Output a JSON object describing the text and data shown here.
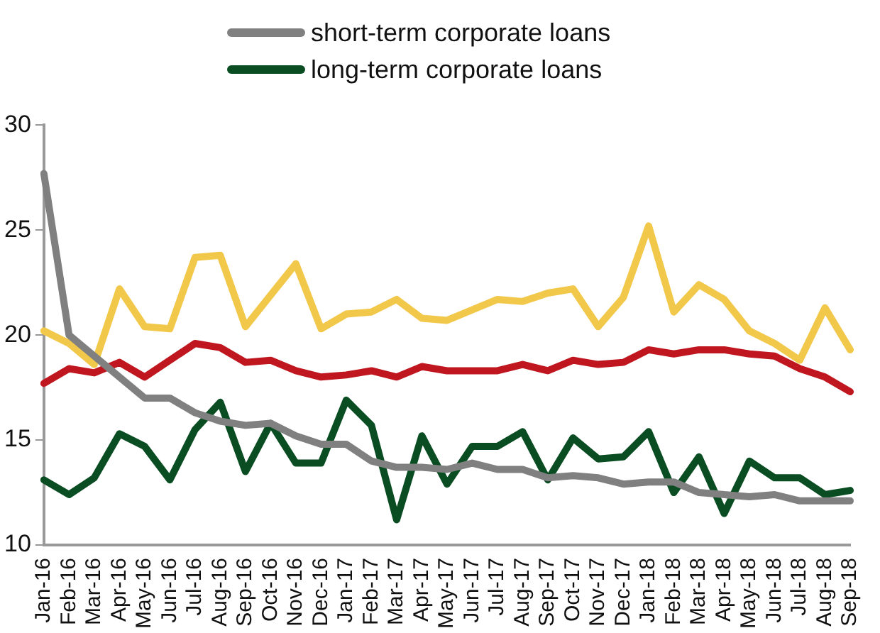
{
  "chart_data": {
    "type": "line",
    "categories": [
      "Jan-16",
      "Feb-16",
      "Mar-16",
      "Apr-16",
      "May-16",
      "Jun-16",
      "Jul-16",
      "Aug-16",
      "Sep-16",
      "Oct-16",
      "Nov-16",
      "Dec-16",
      "Jan-17",
      "Feb-17",
      "Mar-17",
      "Apr-17",
      "May-17",
      "Jun-17",
      "Jul-17",
      "Aug-17",
      "Sep-17",
      "Oct-17",
      "Nov-17",
      "Dec-17",
      "Jan-18",
      "Feb-18",
      "Mar-18",
      "Apr-18",
      "May-18",
      "Jun-18",
      "Jul-18",
      "Aug-18",
      "Sep-18"
    ],
    "series": [
      {
        "name": "short-term corporate loans",
        "color": "#808080",
        "values": [
          27.7,
          20.0,
          19.0,
          18.0,
          17.0,
          17.0,
          16.3,
          15.9,
          15.7,
          15.8,
          15.2,
          14.8,
          14.8,
          14.0,
          13.7,
          13.7,
          13.6,
          13.9,
          13.6,
          13.6,
          13.2,
          13.3,
          13.2,
          12.9,
          13.0,
          13.0,
          12.5,
          12.4,
          12.3,
          12.4,
          12.1,
          12.1,
          12.1
        ]
      },
      {
        "name": "long-term corporate loans",
        "color": "#0b4d22",
        "values": [
          13.1,
          12.4,
          13.2,
          15.3,
          14.7,
          13.1,
          15.5,
          16.8,
          13.5,
          15.8,
          13.9,
          13.9,
          16.9,
          15.7,
          11.2,
          15.2,
          12.9,
          14.7,
          14.7,
          15.4,
          13.1,
          15.1,
          14.1,
          14.2,
          15.4,
          12.5,
          14.2,
          11.5,
          14.0,
          13.2,
          13.2,
          12.4,
          12.6
        ]
      },
      {
        "color": "#f2c84b",
        "values": [
          20.2,
          19.6,
          18.6,
          22.2,
          20.4,
          20.3,
          23.7,
          23.8,
          20.4,
          21.9,
          23.4,
          20.3,
          21.0,
          21.1,
          21.7,
          20.8,
          20.7,
          21.2,
          21.7,
          21.6,
          22.0,
          22.2,
          20.4,
          21.8,
          25.2,
          21.1,
          22.4,
          21.7,
          20.2,
          19.6,
          18.8,
          21.3,
          19.3
        ]
      },
      {
        "color": "#c0161f",
        "values": [
          17.7,
          18.4,
          18.2,
          18.7,
          18.0,
          18.8,
          19.6,
          19.4,
          18.7,
          18.8,
          18.3,
          18.0,
          18.1,
          18.3,
          18.0,
          18.5,
          18.3,
          18.3,
          18.3,
          18.6,
          18.3,
          18.8,
          18.6,
          18.7,
          19.3,
          19.1,
          19.3,
          19.3,
          19.1,
          19.0,
          18.4,
          18.0,
          17.3
        ]
      }
    ],
    "ylim": [
      10,
      30
    ],
    "yticks": [
      10,
      15,
      20,
      25,
      30
    ],
    "grid": false,
    "legend": "top",
    "marker": "none",
    "line_style": "solid"
  }
}
